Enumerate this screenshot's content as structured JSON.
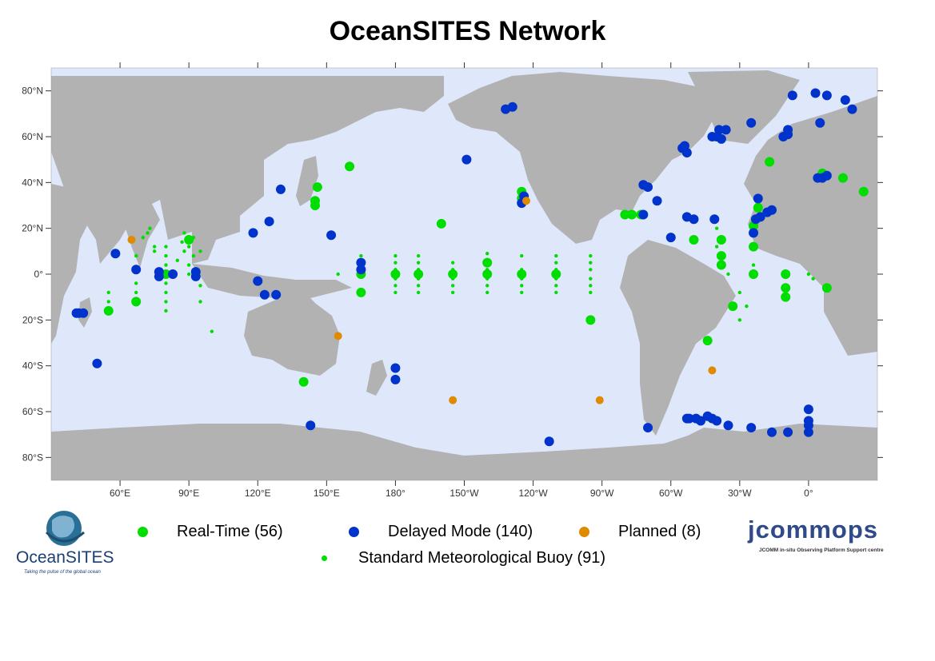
{
  "title": "OceanSITES Network",
  "colors": {
    "ocean": "#dfe8fb",
    "land": "#b2b2b2",
    "real_time": "#00dd00",
    "delayed_mode": "#0033cc",
    "planned": "#e08a00",
    "standard_buoy": "#00dd00"
  },
  "axes": {
    "lon_labels": [
      "60°E",
      "90°E",
      "120°E",
      "150°E",
      "180°",
      "150°W",
      "120°W",
      "90°W",
      "60°W",
      "30°W",
      "0°"
    ],
    "lat_labels": [
      "80°N",
      "60°N",
      "40°N",
      "20°N",
      "0°",
      "20°S",
      "40°S",
      "60°S",
      "80°S"
    ]
  },
  "legend": {
    "real_time": "Real-Time (56)",
    "delayed_mode": "Delayed Mode (140)",
    "planned": "Planned (8)",
    "standard_buoy": "Standard Meteorological Buoy (91)"
  },
  "logos": {
    "left_name": "OceanSITES",
    "left_tagline": "Taking the pulse of the global ocean",
    "right_name": "jcommops",
    "right_tagline": "JCOMM in-situ Observing Platform Support centre"
  },
  "markers": {
    "real_time": [
      [
        55,
        -16
      ],
      [
        67,
        -12
      ],
      [
        90,
        15
      ],
      [
        80,
        0
      ],
      [
        140,
        -47
      ],
      [
        145,
        32
      ],
      [
        146,
        38
      ],
      [
        145,
        30
      ],
      [
        160,
        47
      ],
      [
        165,
        -8
      ],
      [
        165,
        0
      ],
      [
        200,
        22
      ],
      [
        220,
        0
      ],
      [
        220,
        5
      ],
      [
        235,
        36
      ],
      [
        235,
        33
      ],
      [
        265,
        -20
      ],
      [
        280,
        26
      ],
      [
        283,
        26
      ],
      [
        287,
        26
      ],
      [
        310,
        15
      ],
      [
        322,
        15
      ],
      [
        322,
        8
      ],
      [
        322,
        4
      ],
      [
        327,
        -14
      ],
      [
        316,
        -29
      ],
      [
        343,
        49
      ],
      [
        338,
        29
      ],
      [
        336,
        21
      ],
      [
        336,
        12
      ],
      [
        336,
        0
      ],
      [
        350,
        0
      ],
      [
        350,
        -6
      ],
      [
        350,
        -10
      ],
      [
        366,
        44
      ],
      [
        375,
        42
      ],
      [
        384,
        36
      ],
      [
        368,
        -6
      ],
      [
        180,
        0
      ],
      [
        190,
        0
      ],
      [
        205,
        0
      ],
      [
        235,
        0
      ],
      [
        250,
        0
      ]
    ],
    "delayed_mode": [
      [
        41,
        -17
      ],
      [
        42,
        -17
      ],
      [
        44,
        -17
      ],
      [
        58,
        9
      ],
      [
        67,
        2
      ],
      [
        77,
        1
      ],
      [
        77,
        -1
      ],
      [
        83,
        0
      ],
      [
        93,
        1
      ],
      [
        93,
        -1
      ],
      [
        50,
        -39
      ],
      [
        130,
        37
      ],
      [
        125,
        23
      ],
      [
        118,
        18
      ],
      [
        120,
        -3
      ],
      [
        123,
        -9
      ],
      [
        128,
        -9
      ],
      [
        152,
        17
      ],
      [
        165,
        5
      ],
      [
        165,
        2
      ],
      [
        143,
        -66
      ],
      [
        180,
        -41
      ],
      [
        180,
        -46
      ],
      [
        211,
        50
      ],
      [
        228,
        72
      ],
      [
        231,
        73
      ],
      [
        235,
        31
      ],
      [
        236,
        34
      ],
      [
        247,
        -73
      ],
      [
        288,
        39
      ],
      [
        290,
        38
      ],
      [
        294,
        32
      ],
      [
        288,
        26
      ],
      [
        300,
        16
      ],
      [
        305,
        55
      ],
      [
        306,
        56
      ],
      [
        307,
        53
      ],
      [
        307,
        25
      ],
      [
        310,
        24
      ],
      [
        319,
        24
      ],
      [
        318,
        60
      ],
      [
        320,
        60
      ],
      [
        322,
        59
      ],
      [
        321,
        63
      ],
      [
        324,
        63
      ],
      [
        335,
        66
      ],
      [
        336,
        18
      ],
      [
        337,
        24
      ],
      [
        339,
        25
      ],
      [
        338,
        33
      ],
      [
        342,
        27
      ],
      [
        344,
        28
      ],
      [
        349,
        60
      ],
      [
        351,
        61
      ],
      [
        351,
        63
      ],
      [
        353,
        78
      ],
      [
        365,
        66
      ],
      [
        363,
        79
      ],
      [
        368,
        78
      ],
      [
        376,
        76
      ],
      [
        379,
        72
      ],
      [
        364,
        42
      ],
      [
        366,
        42
      ],
      [
        368,
        43
      ],
      [
        290,
        -67
      ],
      [
        307,
        -63
      ],
      [
        308,
        -63
      ],
      [
        311,
        -63
      ],
      [
        313,
        -64
      ],
      [
        316,
        -62
      ],
      [
        318,
        -63
      ],
      [
        320,
        -64
      ],
      [
        325,
        -66
      ],
      [
        335,
        -67
      ],
      [
        344,
        -69
      ],
      [
        351,
        -69
      ],
      [
        360,
        -59
      ],
      [
        360,
        -64
      ],
      [
        360,
        -66
      ],
      [
        360,
        -69
      ]
    ],
    "planned": [
      [
        65,
        15
      ],
      [
        155,
        -27
      ],
      [
        205,
        -55
      ],
      [
        269,
        -55
      ],
      [
        318,
        -42
      ],
      [
        237,
        32
      ]
    ],
    "standard_buoy": [
      [
        55,
        -8
      ],
      [
        55,
        -12
      ],
      [
        67,
        -4
      ],
      [
        67,
        -8
      ],
      [
        67,
        8
      ],
      [
        70,
        16
      ],
      [
        72,
        18
      ],
      [
        73,
        20
      ],
      [
        75,
        12
      ],
      [
        75,
        10
      ],
      [
        80,
        -4
      ],
      [
        80,
        -8
      ],
      [
        80,
        -12
      ],
      [
        80,
        -16
      ],
      [
        80,
        4
      ],
      [
        80,
        8
      ],
      [
        80,
        12
      ],
      [
        85,
        6
      ],
      [
        87,
        14
      ],
      [
        88,
        18
      ],
      [
        88,
        10
      ],
      [
        90,
        12
      ],
      [
        90,
        4
      ],
      [
        90,
        0
      ],
      [
        92,
        16
      ],
      [
        92,
        8
      ],
      [
        95,
        10
      ],
      [
        95,
        -5
      ],
      [
        95,
        -12
      ],
      [
        100,
        -25
      ],
      [
        155,
        0
      ],
      [
        165,
        -8
      ],
      [
        165,
        8
      ],
      [
        180,
        -8
      ],
      [
        180,
        -5
      ],
      [
        180,
        -2
      ],
      [
        180,
        2
      ],
      [
        180,
        5
      ],
      [
        180,
        8
      ],
      [
        190,
        -8
      ],
      [
        190,
        -5
      ],
      [
        190,
        -2
      ],
      [
        190,
        2
      ],
      [
        190,
        5
      ],
      [
        190,
        8
      ],
      [
        205,
        -8
      ],
      [
        205,
        -5
      ],
      [
        205,
        -2
      ],
      [
        205,
        2
      ],
      [
        205,
        5
      ],
      [
        220,
        -8
      ],
      [
        220,
        -5
      ],
      [
        220,
        -2
      ],
      [
        220,
        2
      ],
      [
        220,
        9
      ],
      [
        235,
        -8
      ],
      [
        235,
        -5
      ],
      [
        235,
        -2
      ],
      [
        235,
        2
      ],
      [
        235,
        8
      ],
      [
        250,
        -8
      ],
      [
        250,
        -5
      ],
      [
        250,
        -2
      ],
      [
        250,
        2
      ],
      [
        250,
        5
      ],
      [
        250,
        8
      ],
      [
        265,
        -8
      ],
      [
        265,
        -5
      ],
      [
        265,
        -2
      ],
      [
        265,
        2
      ],
      [
        265,
        5
      ],
      [
        265,
        8
      ],
      [
        320,
        20
      ],
      [
        320,
        12
      ],
      [
        325,
        0
      ],
      [
        330,
        -8
      ],
      [
        330,
        -20
      ],
      [
        333,
        -14
      ],
      [
        336,
        4
      ],
      [
        360,
        0
      ],
      [
        362,
        -2
      ]
    ]
  }
}
